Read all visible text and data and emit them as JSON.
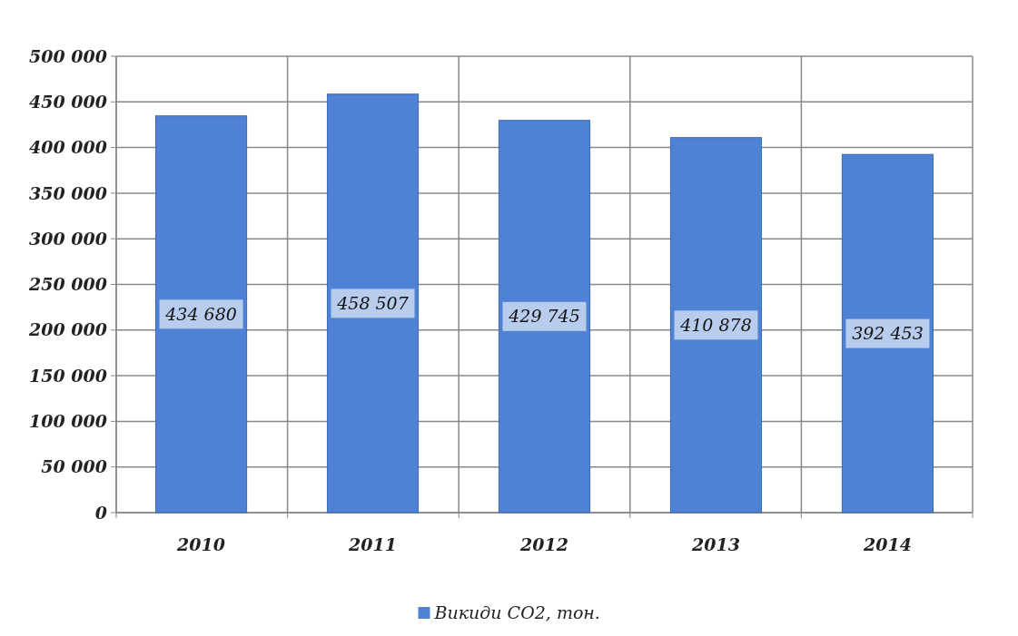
{
  "chart_data": {
    "type": "bar",
    "categories": [
      "2010",
      "2011",
      "2012",
      "2013",
      "2014"
    ],
    "series": [
      {
        "name": "Викиди CO2, тон.",
        "color": "#4f81d4",
        "values": [
          434680,
          458507,
          429745,
          410878,
          392453
        ]
      }
    ],
    "value_labels": [
      "434 680",
      "458 507",
      "429 745",
      "410 878",
      "392 453"
    ],
    "ylim": [
      0,
      500000
    ],
    "yticks": [
      {
        "value": 0,
        "label": "0"
      },
      {
        "value": 50000,
        "label": "50 000"
      },
      {
        "value": 100000,
        "label": "100 000"
      },
      {
        "value": 150000,
        "label": "150 000"
      },
      {
        "value": 200000,
        "label": "200 000"
      },
      {
        "value": 250000,
        "label": "250 000"
      },
      {
        "value": 300000,
        "label": "300 000"
      },
      {
        "value": 350000,
        "label": "350 000"
      },
      {
        "value": 400000,
        "label": "400 000"
      },
      {
        "value": 450000,
        "label": "450 000"
      },
      {
        "value": 500000,
        "label": "500 000"
      }
    ],
    "grid": true,
    "legend": "bottom"
  }
}
